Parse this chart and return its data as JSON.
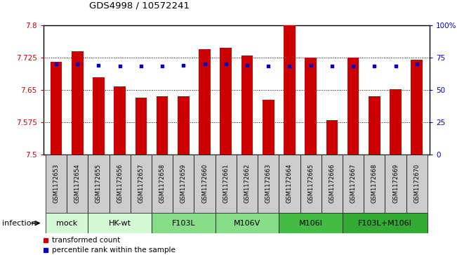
{
  "title": "GDS4998 / 10572241",
  "samples": [
    "GSM1172653",
    "GSM1172654",
    "GSM1172655",
    "GSM1172656",
    "GSM1172657",
    "GSM1172658",
    "GSM1172659",
    "GSM1172660",
    "GSM1172661",
    "GSM1172662",
    "GSM1172663",
    "GSM1172664",
    "GSM1172665",
    "GSM1172666",
    "GSM1172667",
    "GSM1172668",
    "GSM1172669",
    "GSM1172670"
  ],
  "bar_values": [
    7.715,
    7.74,
    7.68,
    7.658,
    7.632,
    7.635,
    7.635,
    7.745,
    7.748,
    7.73,
    7.627,
    7.8,
    7.725,
    7.58,
    7.725,
    7.635,
    7.652,
    7.72
  ],
  "percentile_values": [
    7.71,
    7.71,
    7.707,
    7.705,
    7.706,
    7.705,
    7.707,
    7.71,
    7.71,
    7.707,
    7.706,
    7.706,
    7.707,
    7.706,
    7.706,
    7.706,
    7.706,
    7.71
  ],
  "groups": [
    {
      "label": "mock",
      "start": 0,
      "end": 2,
      "color": "#d4f7d4"
    },
    {
      "label": "HK-wt",
      "start": 2,
      "end": 5,
      "color": "#d4f7d4"
    },
    {
      "label": "F103L",
      "start": 5,
      "end": 8,
      "color": "#88dd88"
    },
    {
      "label": "M106V",
      "start": 8,
      "end": 11,
      "color": "#88dd88"
    },
    {
      "label": "M106I",
      "start": 11,
      "end": 14,
      "color": "#44bb44"
    },
    {
      "label": "F103L+M106I",
      "start": 14,
      "end": 18,
      "color": "#33aa33"
    }
  ],
  "ymin": 7.5,
  "ymax": 7.8,
  "yticks": [
    7.5,
    7.575,
    7.65,
    7.725,
    7.8
  ],
  "ytick_labels": [
    "7.5",
    "7.575",
    "7.65",
    "7.725",
    "7.8"
  ],
  "right_yticks_pct": [
    0,
    25,
    50,
    75,
    100
  ],
  "right_ytick_labels": [
    "0",
    "25",
    "50",
    "75",
    "100%"
  ],
  "bar_color": "#cc0000",
  "percentile_color": "#0000cc",
  "bar_width": 0.55,
  "legend_bar": "transformed count",
  "legend_percentile": "percentile rank within the sample",
  "infection_label": "infection"
}
